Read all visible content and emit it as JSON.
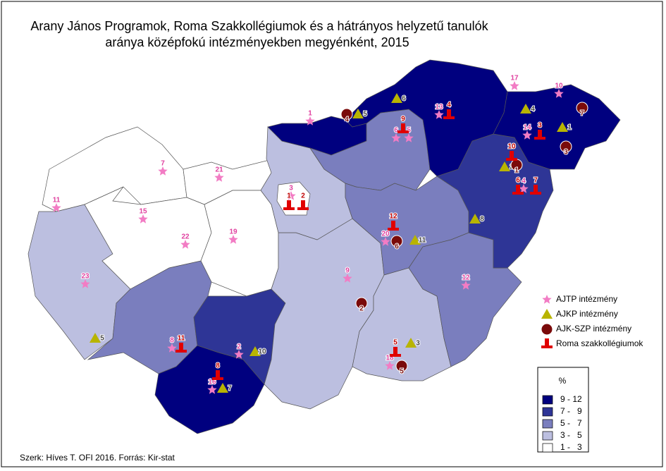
{
  "title": [
    "Arany János Programok, Roma Szakkollégiumok és a hátrányos helyzetű tanulók",
    "aránya középfokú intézményekben megyénként, 2015"
  ],
  "symbol_colors": {
    "ajtp": "#f27cc4",
    "ajkp": "#b8b400",
    "ajkszp": "#7a0a0a",
    "roma": "#e00000"
  },
  "legend_symbols": [
    {
      "kind": "ajtp",
      "label": "AJTP intézmény"
    },
    {
      "kind": "ajkp",
      "label": "AJKP intézmény"
    },
    {
      "kind": "ajkszp",
      "label": "AJK-SZP intézmény"
    },
    {
      "kind": "roma",
      "label": "Roma szakkollégiumok"
    }
  ],
  "legend_classes": {
    "title": "%",
    "classes": [
      {
        "label": "9 - 12",
        "color": "#00007f"
      },
      {
        "label": "7 -   9",
        "color": "#2e3596"
      },
      {
        "label": "5 -   7",
        "color": "#7a7ebe"
      },
      {
        "label": "3 -   5",
        "color": "#bcbfe0"
      },
      {
        "label": "1 -   3",
        "color": "#ffffff"
      }
    ]
  },
  "source": "Szerk: Híves T. OFI 2016.  Forrás: Kir-stat",
  "markers": [
    {
      "kind": "ajtp",
      "label": "1"
    },
    {
      "kind": "ajtp",
      "label": "17"
    },
    {
      "kind": "ajtp",
      "label": "10"
    },
    {
      "kind": "ajtp",
      "label": "13"
    },
    {
      "kind": "ajtp",
      "label": "14"
    },
    {
      "kind": "ajtp",
      "label": "6"
    },
    {
      "kind": "ajtp",
      "label": "5"
    },
    {
      "kind": "ajtp",
      "label": "4"
    },
    {
      "kind": "ajtp",
      "label": "3"
    },
    {
      "kind": "ajtp",
      "label": "7"
    },
    {
      "kind": "ajtp",
      "label": "21"
    },
    {
      "kind": "ajtp",
      "label": "11"
    },
    {
      "kind": "ajtp",
      "label": "15"
    },
    {
      "kind": "ajtp",
      "label": "22"
    },
    {
      "kind": "ajtp",
      "label": "19"
    },
    {
      "kind": "ajtp",
      "label": "20"
    },
    {
      "kind": "ajtp",
      "label": "9"
    },
    {
      "kind": "ajtp",
      "label": "12"
    },
    {
      "kind": "ajtp",
      "label": "23"
    },
    {
      "kind": "ajtp",
      "label": "8"
    },
    {
      "kind": "ajtp",
      "label": "2"
    },
    {
      "kind": "ajtp",
      "label": "16"
    },
    {
      "kind": "ajtp",
      "label": "18"
    },
    {
      "kind": "ajkp",
      "label": "6"
    },
    {
      "kind": "ajkp",
      "label": "5"
    },
    {
      "kind": "ajkp",
      "label": "4"
    },
    {
      "kind": "ajkp",
      "label": "1"
    },
    {
      "kind": "ajkp",
      "label": "2"
    },
    {
      "kind": "ajkp",
      "label": "8"
    },
    {
      "kind": "ajkp",
      "label": "11"
    },
    {
      "kind": "ajkp",
      "label": "3"
    },
    {
      "kind": "ajkp",
      "label": "5"
    },
    {
      "kind": "ajkp",
      "label": "10"
    },
    {
      "kind": "ajkp",
      "label": "7"
    },
    {
      "kind": "ajkszp",
      "label": "4"
    },
    {
      "kind": "ajkszp",
      "label": "7"
    },
    {
      "kind": "ajkszp",
      "label": "3"
    },
    {
      "kind": "ajkszp",
      "label": "1"
    },
    {
      "kind": "ajkszp",
      "label": "6"
    },
    {
      "kind": "ajkszp",
      "label": "2"
    },
    {
      "kind": "ajkszp",
      "label": "5"
    },
    {
      "kind": "roma",
      "label": "4"
    },
    {
      "kind": "roma",
      "label": "9"
    },
    {
      "kind": "roma",
      "label": "3"
    },
    {
      "kind": "roma",
      "label": "10"
    },
    {
      "kind": "roma",
      "label": "6"
    },
    {
      "kind": "roma",
      "label": "7"
    },
    {
      "kind": "roma",
      "label": "1"
    },
    {
      "kind": "roma",
      "label": "2"
    },
    {
      "kind": "roma",
      "label": "12"
    },
    {
      "kind": "roma",
      "label": "11"
    },
    {
      "kind": "roma",
      "label": "5"
    },
    {
      "kind": "roma",
      "label": "8"
    }
  ]
}
